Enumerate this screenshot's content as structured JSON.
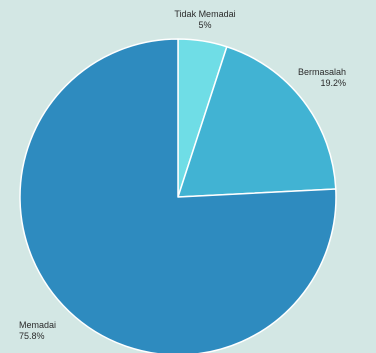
{
  "chart_data": {
    "type": "pie",
    "title": "",
    "slices": [
      {
        "label": "Tidak Memadai",
        "value": 5.0,
        "value_label": "5%",
        "color": "#6fdde6"
      },
      {
        "label": "Bermasalah",
        "value": 19.2,
        "value_label": "19.2%",
        "color": "#41b3d3"
      },
      {
        "label": "Memadai",
        "value": 75.8,
        "value_label": "75.8%",
        "color": "#2e8bbf"
      }
    ],
    "start_angle": "12 o'clock",
    "direction": "clockwise",
    "background_color": "#d3e7e4"
  }
}
